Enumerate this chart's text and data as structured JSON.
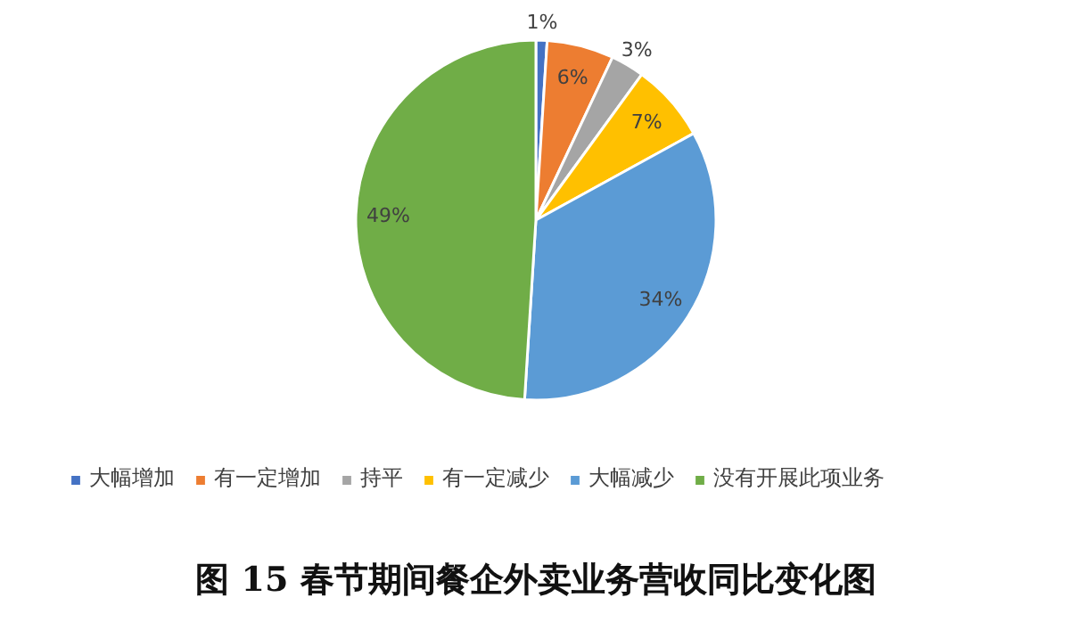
{
  "chart_data": {
    "type": "pie",
    "title": "图 15 春节期间餐企外卖业务营收同比变化图",
    "categories": [
      "大幅增加",
      "有一定增加",
      "持平",
      "有一定减少",
      "大幅减少",
      "没有开展此项业务"
    ],
    "values": [
      1,
      6,
      3,
      7,
      34,
      49
    ],
    "colors": [
      "#4472c4",
      "#ed7d31",
      "#a5a5a5",
      "#ffc000",
      "#5b9bd5",
      "#70ad47"
    ],
    "value_labels": [
      "1%",
      "6%",
      "3%",
      "7%",
      "34%",
      "49%"
    ],
    "legend": "bottom"
  }
}
